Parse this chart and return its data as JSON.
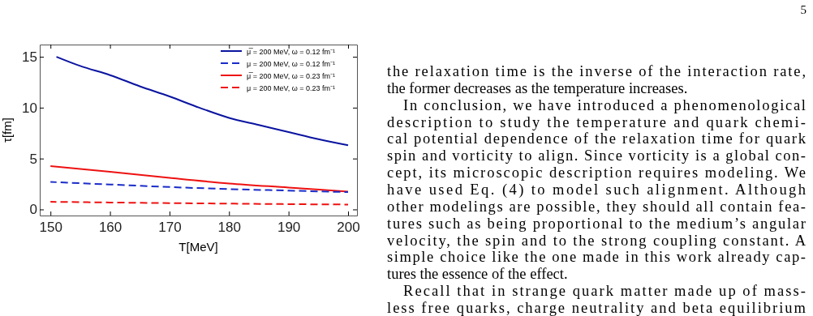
{
  "chart_data": {
    "type": "line",
    "xlabel": "T[MeV]",
    "ylabel": "τ[fm]",
    "xlim": [
      148.2,
      201.5
    ],
    "ylim": [
      -0.6,
      16.2
    ],
    "xticks": [
      150,
      160,
      170,
      180,
      190,
      200
    ],
    "yticks": [
      0,
      5,
      10,
      15
    ],
    "x": [
      151,
      155,
      160,
      165,
      170,
      175,
      180,
      185,
      190,
      195,
      200
    ],
    "series": [
      {
        "name": "μ̅ = 200 MeV, ω = 0.12 fm⁻¹",
        "color": "#0a14a0",
        "line_style": "solid",
        "values": [
          15.0,
          14.1,
          13.2,
          12.1,
          11.1,
          10.0,
          9.0,
          8.3,
          7.6,
          6.9,
          6.3
        ]
      },
      {
        "name": "μ = 200 MeV, ω = 0.12 fm⁻¹",
        "color": "#1a2cc8",
        "line_style": "dashed",
        "x": [
          150,
          160,
          170,
          180,
          190,
          200
        ],
        "values": [
          2.7,
          2.45,
          2.2,
          2.0,
          1.85,
          1.7
        ]
      },
      {
        "name": "μ̅ = 200 MeV, ω = 0.23 fm⁻¹",
        "color": "#ee1111",
        "line_style": "solid",
        "x": [
          150,
          160,
          170,
          180,
          190,
          200
        ],
        "values": [
          4.25,
          3.7,
          3.1,
          2.55,
          2.15,
          1.75
        ]
      },
      {
        "name": "μ = 200 MeV, ω = 0.23 fm⁻¹",
        "color": "#ee1111",
        "line_style": "dashed",
        "x": [
          150,
          160,
          170,
          180,
          190,
          200
        ],
        "values": [
          0.75,
          0.68,
          0.62,
          0.57,
          0.52,
          0.48
        ]
      }
    ],
    "legend": "top right",
    "grid": false,
    "annotations": [
      "5",
      "the relaxation time is the inverse of the interaction rate,",
      "the former decreases as the temperature increases.",
      "In conclusion, we have introduced a phenomenological",
      "description to study the temperature and quark chemi-",
      "cal potential dependence of the relaxation time for quark",
      "spin and vorticity to align. Since vorticity is a global con-",
      "cept, its microscopic description requires modeling. We",
      "have used Eq. (4) to model such alignment. Although",
      "other modelings are possible, they should all contain fea-",
      "tures such as being proportional to the medium’s angular",
      "velocity, the spin and to the strong coupling constant. A",
      "simple choice like the one made in this work already cap-",
      "tures the essence of the effect.",
      "Recall that in strange quark matter made up of mass-",
      "less free quarks, charge neutrality and beta equilibrium"
    ]
  }
}
